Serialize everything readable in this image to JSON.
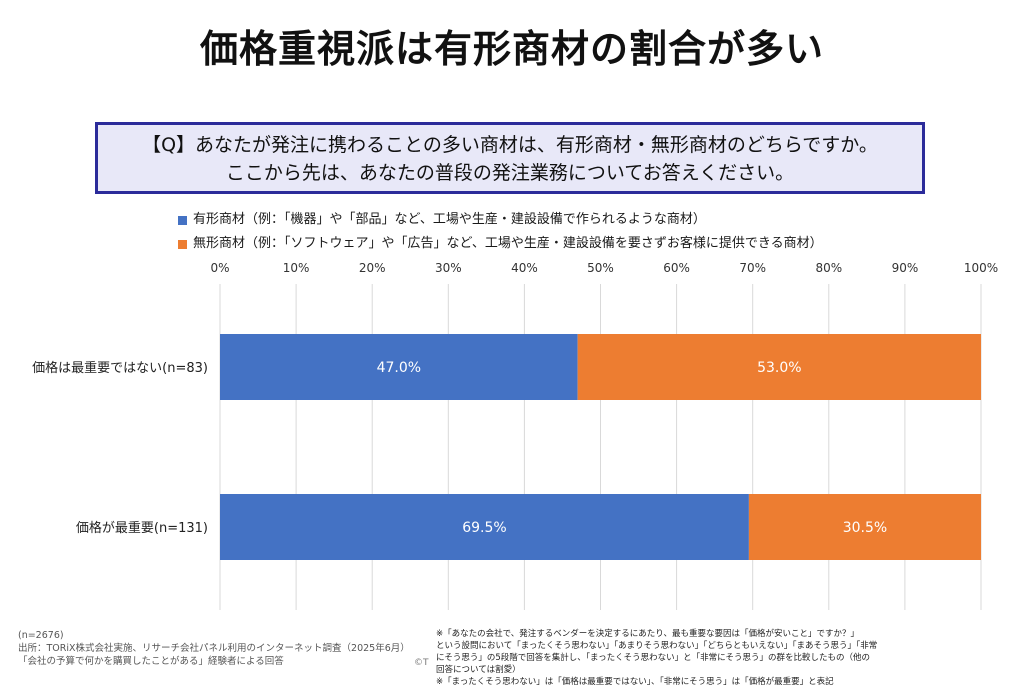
{
  "title": "価格重視派は有形商材の割合が多い",
  "question": {
    "line1": "【Q】あなたが発注に携わることの多い商材は、有形商材・無形商材のどちらですか。",
    "line2": "ここから先は、あなたの普段の発注業務についてお答えください。"
  },
  "chart_data": {
    "type": "bar",
    "orientation": "horizontal",
    "stacked": "percent",
    "categories": [
      "価格は最重要ではない(n=83)",
      "価格が最重要(n=131)"
    ],
    "series": [
      {
        "name": "有形商材（例：「機器」や「部品」など、工場や生産・建設設備で作られるような商材）",
        "color": "#4472c4",
        "values": [
          47.0,
          69.5
        ],
        "labels": [
          "47.0%",
          "69.5%"
        ]
      },
      {
        "name": "無形商材（例：「ソフトウェア」や「広告」など、工場や生産・建設設備を要さずお客様に提供できる商材）",
        "color": "#ed7d31",
        "values": [
          53.0,
          30.5
        ],
        "labels": [
          "53.0%",
          "30.5%"
        ]
      }
    ],
    "xlim": [
      0,
      100
    ],
    "xticks": [
      "0%",
      "10%",
      "20%",
      "30%",
      "40%",
      "50%",
      "60%",
      "70%",
      "80%",
      "90%",
      "100%"
    ],
    "xaxis_position": "top",
    "grid": true,
    "legend_position": "top-left"
  },
  "footer": {
    "sample": "(n=2676)",
    "source1": "出所：TORiX株式会社実施、リサーチ会社パネル利用のインターネット調査（2025年6月）",
    "source2": "「会社の予算で何かを購買したことがある」経験者による回答",
    "copyright": "©T",
    "notes": [
      "※「あなたの会社で、発注するベンダーを決定するにあたり、最も重要な要因は「価格が安いこと」ですか？」",
      "という設問において「まったくそう思わない」「あまりそう思わない」「どちらともいえない」「まあそう思う」「非常",
      "にそう思う」の5段階で回答を集計し、「まったくそう思わない」と「非常にそう思う」の群を比較したもの（他の",
      "回答については割愛）",
      "※「まったくそう思わない」は「価格は最重要ではない」、「非常にそう思う」は「価格が最重要」と表記"
    ]
  }
}
